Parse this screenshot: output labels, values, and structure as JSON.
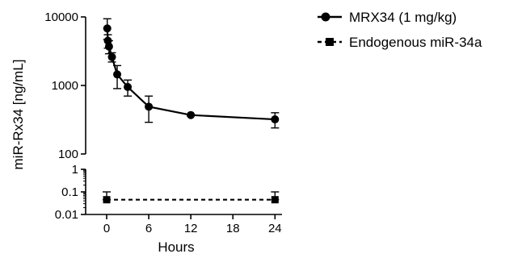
{
  "chart_data": {
    "type": "line",
    "xlabel": "Hours",
    "ylabel": "miR-Rx34 [ng/mL]",
    "x_ticks": [
      0,
      6,
      12,
      18,
      24
    ],
    "xlim": [
      -3,
      25
    ],
    "y_scale": "log",
    "y_axis_break": true,
    "y_upper_ticks": [
      "10000",
      "1000",
      "100"
    ],
    "y_upper_tick_values": [
      10000,
      1000,
      100
    ],
    "y_upper_range": [
      100,
      10000
    ],
    "y_lower_ticks": [
      "1",
      "0.1",
      "0.01"
    ],
    "y_lower_tick_values": [
      1,
      0.1,
      0.01
    ],
    "y_lower_range": [
      0.01,
      1
    ],
    "legend_position": "top-right",
    "series": [
      {
        "name": "MRX34 (1 mg/kg)",
        "line_style": "solid",
        "marker": "circle",
        "color": "#000000",
        "x": [
          0.08,
          0.17,
          0.33,
          0.75,
          1.5,
          3,
          6,
          12,
          24
        ],
        "y": [
          6800,
          4500,
          3700,
          2600,
          1450,
          950,
          490,
          370,
          320
        ],
        "error": [
          [
            4700,
            9400
          ],
          [
            3500,
            5500
          ],
          [
            2900,
            4500
          ],
          [
            2200,
            3000
          ],
          [
            900,
            1950
          ],
          [
            700,
            1200
          ],
          [
            290,
            700
          ],
          [
            360,
            380
          ],
          [
            240,
            400
          ]
        ]
      },
      {
        "name": "Endogenous miR-34a",
        "line_style": "dashed",
        "marker": "square",
        "color": "#000000",
        "x": [
          0,
          24
        ],
        "y": [
          0.045,
          0.045
        ],
        "error": [
          [
            0.045,
            0.1
          ],
          [
            0.045,
            0.1
          ]
        ]
      }
    ]
  }
}
